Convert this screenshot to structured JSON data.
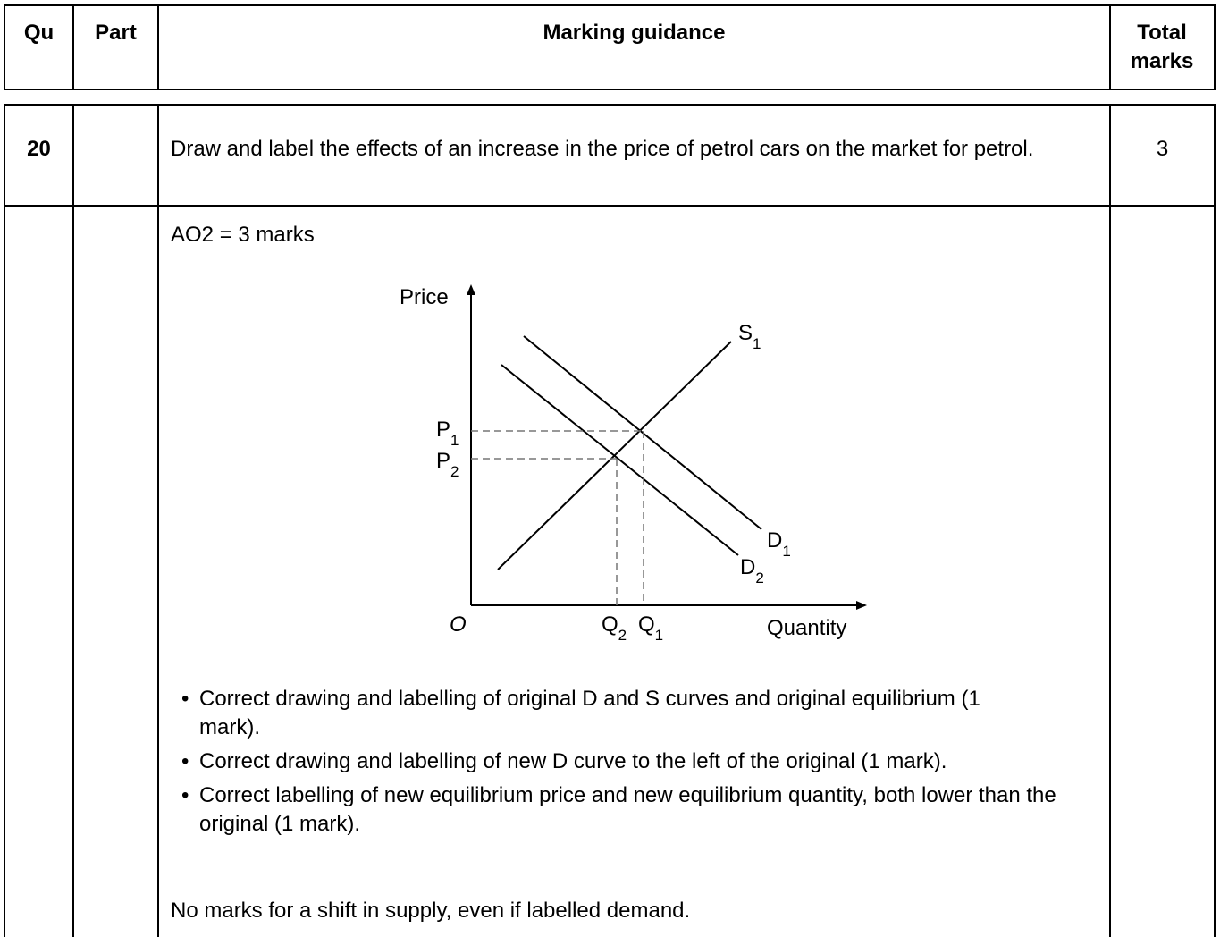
{
  "header": {
    "qu": "Qu",
    "part": "Part",
    "guidance": "Marking guidance",
    "total": "Total marks"
  },
  "question": {
    "number": "20",
    "text": "Draw and label the effects of an increase in the price of petrol cars on the market for petrol.",
    "marks": "3"
  },
  "guidance": {
    "ao": "AO2 = 3 marks",
    "diagram": {
      "y_axis": "Price",
      "x_axis": "Quantity",
      "origin": "O",
      "s1": {
        "main": "S",
        "sub": "1"
      },
      "d1": {
        "main": "D",
        "sub": "1"
      },
      "d2": {
        "main": "D",
        "sub": "2"
      },
      "p1": {
        "main": "P",
        "sub": "1"
      },
      "p2": {
        "main": "P",
        "sub": "2"
      },
      "q1": {
        "main": "Q",
        "sub": "1"
      },
      "q2": {
        "main": "Q",
        "sub": "2"
      }
    },
    "bullets": [
      "Correct drawing and labelling of original D and S curves and original equilibrium (1 mark).",
      "Correct drawing and labelling of new D curve to the left of the original (1 mark).",
      "Correct labelling of new equilibrium price and new equilibrium quantity, both lower than the original (1 mark)."
    ],
    "note": "No marks for a shift in supply, even if labelled demand."
  }
}
